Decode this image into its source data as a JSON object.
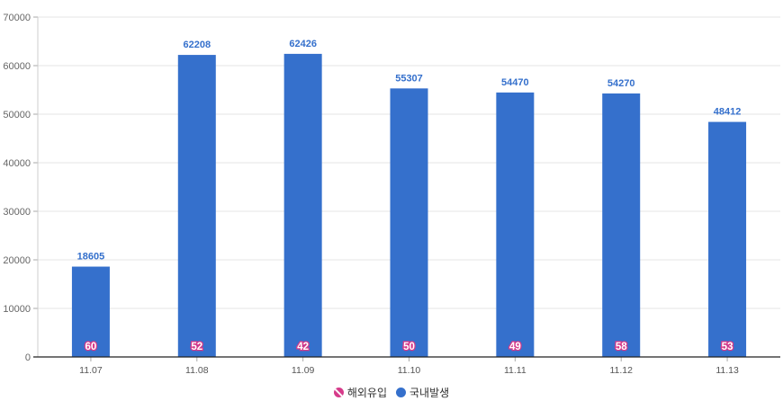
{
  "chart_data": {
    "type": "bar",
    "categories": [
      "11.07",
      "11.08",
      "11.09",
      "11.10",
      "11.11",
      "11.12",
      "11.13"
    ],
    "series": [
      {
        "name": "국내발생",
        "values": [
          18605,
          62208,
          62426,
          55307,
          54470,
          54270,
          48412
        ],
        "color": "#3570cc"
      },
      {
        "name": "해외유입",
        "values": [
          60,
          52,
          42,
          50,
          49,
          58,
          53
        ],
        "color": "#d63a8a"
      }
    ],
    "ylim": [
      0,
      70000
    ],
    "yticks": [
      0,
      10000,
      20000,
      30000,
      40000,
      50000,
      60000,
      70000
    ],
    "grid": true,
    "legend": "bottom",
    "title": "",
    "xlabel": "",
    "ylabel": ""
  },
  "legend": {
    "overseas_label": "해외유입",
    "domestic_label": "국내발생"
  }
}
